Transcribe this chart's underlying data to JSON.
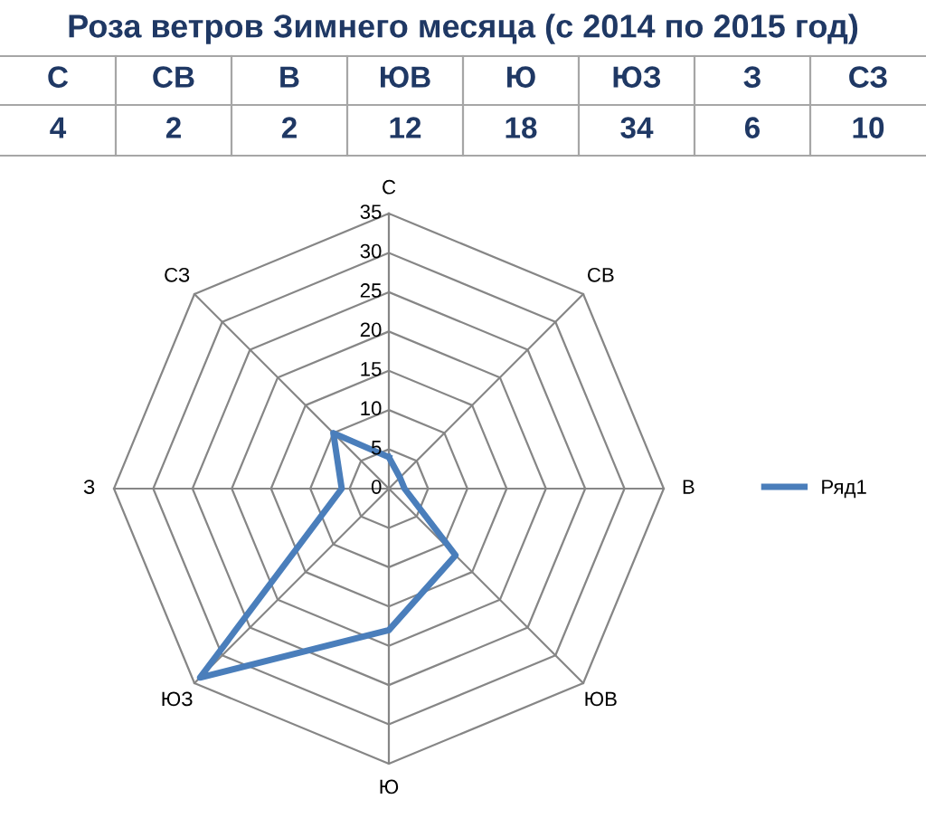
{
  "chart_data": [
    {
      "type": "other",
      "title": "Роза ветров Зимнего месяца (с 2014 по 2015 год)",
      "categories": [
        "С",
        "СВ",
        "В",
        "ЮВ",
        "Ю",
        "ЮЗ",
        "З",
        "СЗ"
      ],
      "annotations": [
        "4",
        "2",
        "2",
        "12",
        "18",
        "34",
        "6",
        "10"
      ]
    },
    {
      "type": "radar",
      "categories": [
        "С",
        "СВ",
        "В",
        "ЮВ",
        "Ю",
        "ЮЗ",
        "З",
        "СЗ"
      ],
      "series": [
        {
          "name": "Ряд1",
          "color": "#4a7ebb",
          "values": [
            4,
            2,
            2,
            12,
            18,
            34,
            6,
            10
          ]
        }
      ],
      "ylim": [
        0,
        35
      ],
      "yticks": [
        0,
        5,
        10,
        15,
        20,
        25,
        30,
        35
      ],
      "grid": true,
      "legend": "right",
      "marker": "none",
      "line_style": "solid"
    }
  ]
}
